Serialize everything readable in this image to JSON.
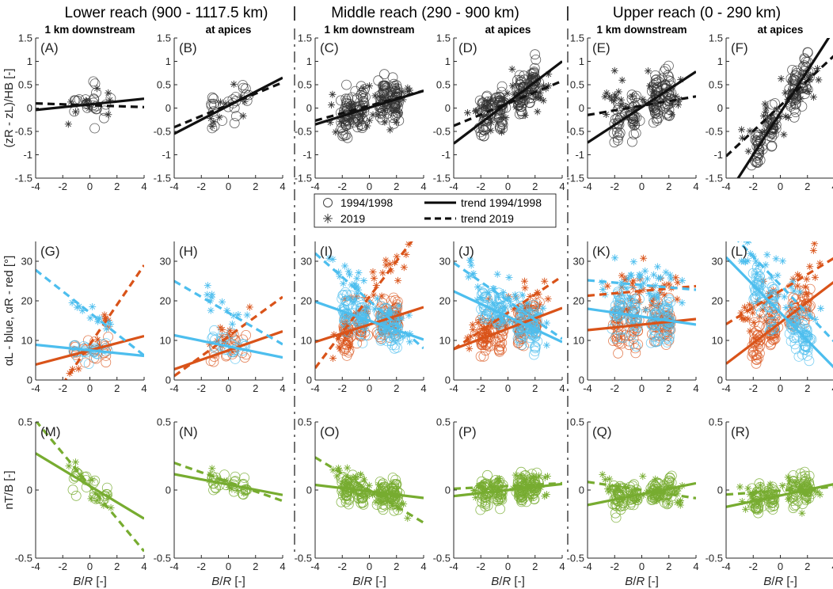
{
  "colors": {
    "black": "#111111",
    "blue": "#4DBEEE",
    "red": "#D95319",
    "green": "#77AC30",
    "axis": "#262626"
  },
  "reaches": [
    {
      "label": "Lower reach (900 - 1117.5 km)"
    },
    {
      "label": "Middle reach (290 - 900 km)"
    },
    {
      "label": "Upper reach (0 - 290 km)"
    }
  ],
  "separator": "|",
  "legend": {
    "items": [
      {
        "label": "1994/1998",
        "marker": "circle"
      },
      {
        "label": "2019",
        "marker": "star"
      },
      {
        "label": "trend 1994/1998",
        "line": "solid"
      },
      {
        "label": "trend 2019",
        "line": "dashed"
      }
    ]
  },
  "chart_data": {
    "type": "scatter",
    "columns": [
      {
        "title": "1 km downstream",
        "reach": "Lower reach (900 - 1117.5 km)"
      },
      {
        "title": "at apices",
        "reach": "Lower reach (900 - 1117.5 km)"
      },
      {
        "title": "1 km downstream",
        "reach": "Middle reach (290 - 900 km)"
      },
      {
        "title": "at apices",
        "reach": "Middle reach (290 - 900 km)"
      },
      {
        "title": "1 km downstream",
        "reach": "Upper reach (0 - 290 km)"
      },
      {
        "title": "at apices",
        "reach": "Upper reach (0 - 290 km)"
      }
    ],
    "x": {
      "label": "B/R [-]",
      "lim": [
        -4,
        4
      ],
      "ticks": [
        -4,
        -2,
        0,
        2,
        4
      ]
    },
    "rows": [
      {
        "ylabel": "(zR - zL)/HB [-]",
        "ylim": [
          -1.5,
          1.5
        ],
        "yticks": [
          -1.5,
          -1,
          -0.5,
          0,
          0.5,
          1,
          1.5
        ],
        "panels": [
          {
            "label": "(A)",
            "n1994": 25,
            "n2019": 10,
            "xmin": -1.6,
            "xmax": 1.6,
            "spread": 0.35,
            "trends": [
              {
                "series": "black",
                "style": "solid",
                "slope": 0.03,
                "intercept": 0.08
              },
              {
                "series": "black",
                "style": "dashed",
                "slope": -0.01,
                "intercept": 0.06
              }
            ]
          },
          {
            "label": "(B)",
            "n1994": 25,
            "n2019": 10,
            "xmin": -1.6,
            "xmax": 1.6,
            "spread": 0.35,
            "trends": [
              {
                "series": "black",
                "style": "solid",
                "slope": 0.15,
                "intercept": 0.05
              },
              {
                "series": "black",
                "style": "dashed",
                "slope": 0.12,
                "intercept": 0.07
              }
            ]
          },
          {
            "label": "(C)",
            "n1994": 170,
            "n2019": 40,
            "xmin": -3,
            "xmax": 3,
            "spread": 0.45,
            "trends": [
              {
                "series": "black",
                "style": "solid",
                "slope": 0.09,
                "intercept": 0.01
              },
              {
                "series": "black",
                "style": "dashed",
                "slope": 0.08,
                "intercept": 0.05
              }
            ]
          },
          {
            "label": "(D)",
            "n1994": 170,
            "n2019": 40,
            "xmin": -3,
            "xmax": 3,
            "spread": 0.45,
            "trends": [
              {
                "series": "black",
                "style": "solid",
                "slope": 0.22,
                "intercept": 0.12
              },
              {
                "series": "black",
                "style": "dashed",
                "slope": 0.12,
                "intercept": 0.1
              }
            ]
          },
          {
            "label": "(E)",
            "n1994": 130,
            "n2019": 35,
            "xmin": -3,
            "xmax": 3,
            "spread": 0.55,
            "trends": [
              {
                "series": "black",
                "style": "solid",
                "slope": 0.19,
                "intercept": 0.02
              },
              {
                "series": "black",
                "style": "dashed",
                "slope": 0.05,
                "intercept": 0.05
              }
            ]
          },
          {
            "label": "(F)",
            "n1994": 130,
            "n2019": 35,
            "xmin": -3,
            "xmax": 3,
            "spread": 0.45,
            "trends": [
              {
                "series": "black",
                "style": "solid",
                "slope": 0.45,
                "intercept": -0.1
              },
              {
                "series": "black",
                "style": "dashed",
                "slope": 0.27,
                "intercept": 0.05
              }
            ]
          }
        ]
      },
      {
        "ylabel": "αL - blue, αR - red [°]",
        "ylim": [
          0,
          35
        ],
        "yticks": [
          0,
          10,
          20,
          30
        ],
        "panels": [
          {
            "label": "(G)",
            "n1994": 25,
            "n2019": 12,
            "xmin": -1.6,
            "xmax": 1.6,
            "spread": 3,
            "trends": [
              {
                "series": "red",
                "style": "solid",
                "slope": 0.9,
                "intercept": 7.5
              },
              {
                "series": "red",
                "style": "dashed",
                "slope": 5.0,
                "intercept": 9
              },
              {
                "series": "blue",
                "style": "solid",
                "slope": -0.35,
                "intercept": 7.5
              },
              {
                "series": "blue",
                "style": "dashed",
                "slope": -2.7,
                "intercept": 17
              }
            ]
          },
          {
            "label": "(H)",
            "n1994": 25,
            "n2019": 12,
            "xmin": -1.6,
            "xmax": 1.6,
            "spread": 3,
            "trends": [
              {
                "series": "red",
                "style": "solid",
                "slope": 1.2,
                "intercept": 7.5
              },
              {
                "series": "red",
                "style": "dashed",
                "slope": 2.5,
                "intercept": 11
              },
              {
                "series": "blue",
                "style": "solid",
                "slope": -0.7,
                "intercept": 8.5
              },
              {
                "series": "blue",
                "style": "dashed",
                "slope": -2.0,
                "intercept": 17
              }
            ]
          },
          {
            "label": "(I)",
            "n1994": 140,
            "n2019": 40,
            "xmin": -3,
            "xmax": 3,
            "spread": 5,
            "trends": [
              {
                "series": "red",
                "style": "solid",
                "slope": 1.1,
                "intercept": 14
              },
              {
                "series": "red",
                "style": "dashed",
                "slope": 4.5,
                "intercept": 21
              },
              {
                "series": "blue",
                "style": "solid",
                "slope": -1.2,
                "intercept": 15
              },
              {
                "series": "blue",
                "style": "dashed",
                "slope": -3.0,
                "intercept": 20
              }
            ]
          },
          {
            "label": "(J)",
            "n1994": 140,
            "n2019": 40,
            "xmin": -3,
            "xmax": 3,
            "spread": 5,
            "trends": [
              {
                "series": "red",
                "style": "solid",
                "slope": 1.3,
                "intercept": 13
              },
              {
                "series": "red",
                "style": "dashed",
                "slope": 2.3,
                "intercept": 17
              },
              {
                "series": "blue",
                "style": "solid",
                "slope": -1.6,
                "intercept": 16
              },
              {
                "series": "blue",
                "style": "dashed",
                "slope": -2.4,
                "intercept": 20
              }
            ]
          },
          {
            "label": "(K)",
            "n1994": 130,
            "n2019": 35,
            "xmin": -3,
            "xmax": 3,
            "spread": 6,
            "trends": [
              {
                "series": "red",
                "style": "solid",
                "slope": 0.35,
                "intercept": 14
              },
              {
                "series": "red",
                "style": "dashed",
                "slope": 0.3,
                "intercept": 22.5
              },
              {
                "series": "blue",
                "style": "solid",
                "slope": -0.5,
                "intercept": 16
              },
              {
                "series": "blue",
                "style": "dashed",
                "slope": -0.3,
                "intercept": 24
              }
            ]
          },
          {
            "label": "(L)",
            "n1994": 130,
            "n2019": 35,
            "xmin": -3,
            "xmax": 3,
            "spread": 6,
            "trends": [
              {
                "series": "red",
                "style": "solid",
                "slope": 2.6,
                "intercept": 14.5
              },
              {
                "series": "red",
                "style": "dashed",
                "slope": 2.1,
                "intercept": 22.5
              },
              {
                "series": "blue",
                "style": "solid",
                "slope": -3.5,
                "intercept": 17
              },
              {
                "series": "blue",
                "style": "dashed",
                "slope": -3.6,
                "intercept": 24
              }
            ]
          }
        ]
      },
      {
        "ylabel": "nT/B [-]",
        "ylim": [
          -0.5,
          0.5
        ],
        "yticks": [
          -0.5,
          0,
          0.5
        ],
        "panels": [
          {
            "label": "(M)",
            "n1994": 25,
            "n2019": 12,
            "xmin": -1.6,
            "xmax": 1.6,
            "spread": 0.1,
            "trends": [
              {
                "series": "green",
                "style": "solid",
                "slope": -0.06,
                "intercept": 0.03
              },
              {
                "series": "green",
                "style": "dashed",
                "slope": -0.12,
                "intercept": 0.03
              }
            ]
          },
          {
            "label": "(N)",
            "n1994": 25,
            "n2019": 12,
            "xmin": -1.6,
            "xmax": 1.6,
            "spread": 0.07,
            "trends": [
              {
                "series": "green",
                "style": "solid",
                "slope": -0.019,
                "intercept": 0.04
              },
              {
                "series": "green",
                "style": "dashed",
                "slope": -0.035,
                "intercept": 0.06
              }
            ]
          },
          {
            "label": "(O)",
            "n1994": 150,
            "n2019": 40,
            "xmin": -3,
            "xmax": 3,
            "spread": 0.1,
            "trends": [
              {
                "series": "green",
                "style": "solid",
                "slope": -0.012,
                "intercept": -0.01
              },
              {
                "series": "green",
                "style": "dashed",
                "slope": -0.06,
                "intercept": 0.0
              }
            ]
          },
          {
            "label": "(P)",
            "n1994": 150,
            "n2019": 40,
            "xmin": -3,
            "xmax": 3,
            "spread": 0.1,
            "trends": [
              {
                "series": "green",
                "style": "solid",
                "slope": 0.011,
                "intercept": 0.0
              },
              {
                "series": "green",
                "style": "dashed",
                "slope": 0.005,
                "intercept": 0.03
              }
            ]
          },
          {
            "label": "(Q)",
            "n1994": 130,
            "n2019": 35,
            "xmin": -3,
            "xmax": 3,
            "spread": 0.1,
            "trends": [
              {
                "series": "green",
                "style": "solid",
                "slope": 0.02,
                "intercept": -0.03
              },
              {
                "series": "green",
                "style": "dashed",
                "slope": -0.015,
                "intercept": 0.0
              }
            ]
          },
          {
            "label": "(R)",
            "n1994": 130,
            "n2019": 35,
            "xmin": -3,
            "xmax": 3,
            "spread": 0.1,
            "trends": [
              {
                "series": "green",
                "style": "solid",
                "slope": 0.021,
                "intercept": -0.04
              },
              {
                "series": "green",
                "style": "dashed",
                "slope": 0.007,
                "intercept": -0.005
              }
            ]
          }
        ]
      }
    ]
  }
}
